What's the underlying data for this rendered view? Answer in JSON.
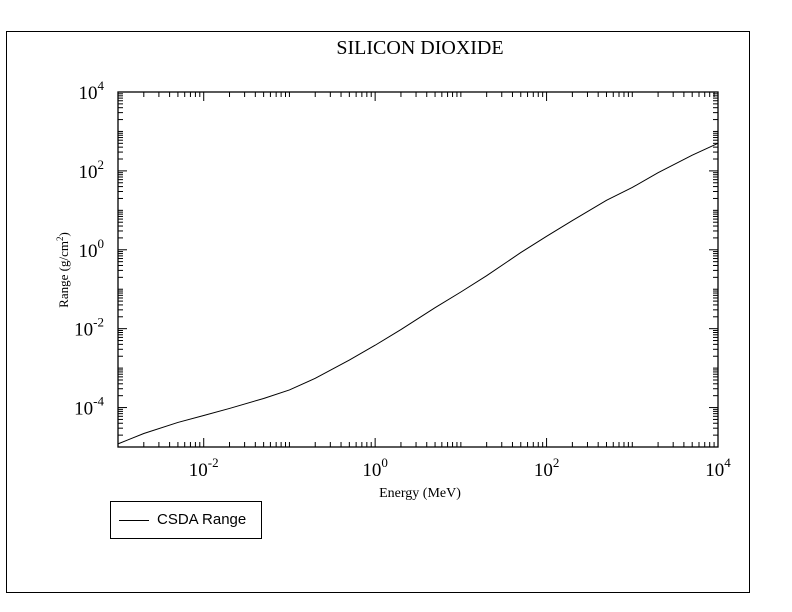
{
  "chart_data": {
    "type": "line",
    "title": "SILICON DIOXIDE",
    "xlabel": "Energy (MeV)",
    "ylabel": "Range (g/cm",
    "ylabel_sup": "2",
    "ylabel_close": ")",
    "xscale": "log",
    "yscale": "log",
    "xlim": [
      0.001,
      10000
    ],
    "ylim": [
      1e-05,
      10000
    ],
    "xticks": [
      {
        "base": "10",
        "exp": "-2",
        "value": 0.01
      },
      {
        "base": "10",
        "exp": "0",
        "value": 1
      },
      {
        "base": "10",
        "exp": "2",
        "value": 100
      },
      {
        "base": "10",
        "exp": "4",
        "value": 10000
      }
    ],
    "yticks": [
      {
        "base": "10",
        "exp": "-4",
        "value": 0.0001
      },
      {
        "base": "10",
        "exp": "-2",
        "value": 0.01
      },
      {
        "base": "10",
        "exp": "0",
        "value": 1
      },
      {
        "base": "10",
        "exp": "2",
        "value": 100
      },
      {
        "base": "10",
        "exp": "4",
        "value": 10000
      }
    ],
    "grid": false,
    "legend_position": "below-left",
    "series": [
      {
        "name": "CSDA Range",
        "color": "#000000",
        "x": [
          0.001,
          0.002,
          0.005,
          0.01,
          0.02,
          0.05,
          0.1,
          0.2,
          0.5,
          1,
          2,
          5,
          10,
          20,
          50,
          100,
          200,
          500,
          1000,
          2000,
          5000,
          10000
        ],
        "y": [
          1.2e-05,
          2.2e-05,
          4.2e-05,
          6.3e-05,
          9.5e-05,
          0.00017,
          0.00028,
          0.00055,
          0.0016,
          0.0038,
          0.0095,
          0.034,
          0.085,
          0.22,
          0.85,
          2.2,
          5.5,
          18,
          38,
          90,
          250,
          500
        ]
      }
    ]
  }
}
